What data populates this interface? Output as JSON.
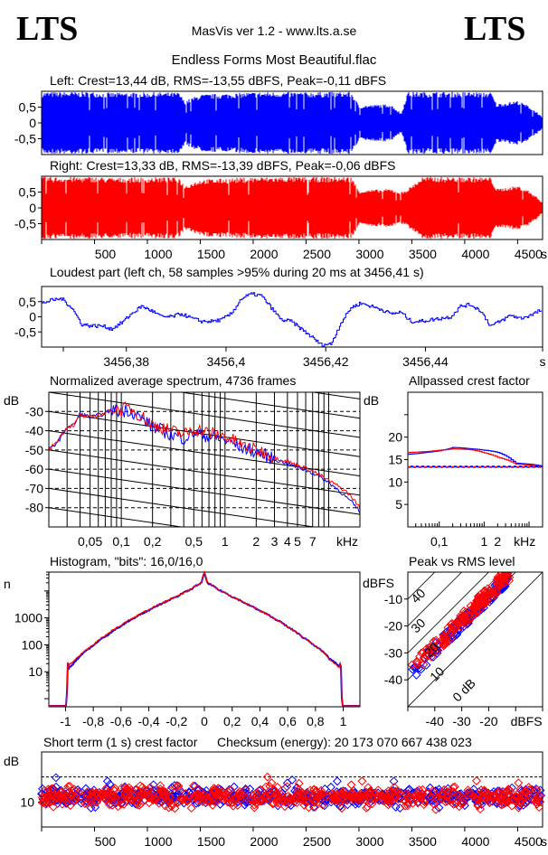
{
  "header": {
    "logo_left": "LTS",
    "logo_right": "LTS",
    "app": "MasVis ver 1.2 - www.lts.a.se",
    "file": "Endless Forms Most Beautiful.flac"
  },
  "colors": {
    "left": "#0000ff",
    "right": "#ff0000",
    "grid": "#000000"
  },
  "chart_data": [
    {
      "id": "left-waveform",
      "type": "area",
      "title": "Left: Crest=13,44 dB, RMS=-13,55 dBFS, Peak=-0,11 dBFS",
      "channel": "left",
      "ylim": [
        -1,
        1
      ],
      "yticks": [
        "0,5",
        "0",
        "-0,5"
      ],
      "ytick_values": [
        0.5,
        0,
        -0.5
      ],
      "xlim": [
        0,
        4736
      ],
      "envelope_x": [
        0,
        300,
        500,
        700,
        800,
        1000,
        1050,
        1300,
        1350,
        1500,
        2000,
        2340,
        2500,
        2700,
        2930,
        3000,
        3300,
        3400,
        3460,
        3600,
        3800,
        4000,
        4250,
        4300,
        4500,
        4600,
        4700,
        4736
      ],
      "envelope_y": [
        0.98,
        0.98,
        0.98,
        0.95,
        0.97,
        0.96,
        0.97,
        0.96,
        0.7,
        0.9,
        0.97,
        0.98,
        0.97,
        0.98,
        0.98,
        0.55,
        0.6,
        0.3,
        0.98,
        0.98,
        0.98,
        0.98,
        0.97,
        0.6,
        0.7,
        0.55,
        0.3,
        0.15
      ]
    },
    {
      "id": "right-waveform",
      "type": "area",
      "title": "Right: Crest=13,33 dB, RMS=-13,39 dBFS, Peak=-0,06 dBFS",
      "channel": "right",
      "ylim": [
        -1,
        1
      ],
      "yticks": [
        "0,5",
        "0",
        "-0,5"
      ],
      "ytick_values": [
        0.5,
        0,
        -0.5
      ],
      "xlim": [
        0,
        4736
      ],
      "xticks": [
        "500",
        "1000",
        "1500",
        "2000",
        "2500",
        "3000",
        "3500",
        "4000",
        "4500"
      ],
      "xtick_values": [
        500,
        1000,
        1500,
        2000,
        2500,
        3000,
        3500,
        4000,
        4500
      ],
      "xunit": "s",
      "envelope_x": [
        0,
        300,
        500,
        700,
        800,
        1000,
        1050,
        1300,
        1350,
        1500,
        2000,
        2340,
        2500,
        2700,
        2930,
        3000,
        3300,
        3400,
        3460,
        3600,
        3800,
        4000,
        4250,
        4300,
        4500,
        4600,
        4700,
        4736
      ],
      "envelope_y": [
        0.98,
        0.98,
        0.98,
        0.95,
        0.97,
        0.96,
        0.97,
        0.96,
        0.7,
        0.9,
        0.97,
        0.98,
        0.97,
        0.98,
        0.98,
        0.55,
        0.6,
        0.5,
        0.6,
        0.98,
        0.98,
        0.98,
        0.97,
        0.6,
        0.7,
        0.55,
        0.3,
        0.15
      ]
    },
    {
      "id": "loudest-part",
      "type": "line",
      "title": "Loudest part (left  ch, 58 samples >95% during 20 ms at 3456,41 s)",
      "ylim": [
        -1,
        1
      ],
      "yticks": [
        "0,5",
        "0",
        "-0,5"
      ],
      "ytick_values": [
        0.5,
        0,
        -0.5
      ],
      "xlim": [
        3456.363,
        3456.4635
      ],
      "xticks": [
        "3456,38",
        "3456,4",
        "3456,42",
        "3456,44",
        "s"
      ],
      "xtick_values": [
        3456.38,
        3456.4,
        3456.42,
        3456.44,
        3456.4635
      ],
      "x": [
        3456.363,
        3456.365,
        3456.367,
        3456.369,
        3456.371,
        3456.373,
        3456.375,
        3456.377,
        3456.379,
        3456.381,
        3456.383,
        3456.385,
        3456.387,
        3456.389,
        3456.391,
        3456.393,
        3456.395,
        3456.397,
        3456.399,
        3456.401,
        3456.403,
        3456.405,
        3456.407,
        3456.409,
        3456.411,
        3456.413,
        3456.415,
        3456.417,
        3456.419,
        3456.421,
        3456.423,
        3456.425,
        3456.427,
        3456.429,
        3456.431,
        3456.433,
        3456.435,
        3456.437,
        3456.439,
        3456.441,
        3456.443,
        3456.445,
        3456.447,
        3456.449,
        3456.451,
        3456.453,
        3456.455,
        3456.457,
        3456.459,
        3456.461,
        3456.4635
      ],
      "y": [
        0.45,
        0.55,
        0.6,
        0.3,
        -0.25,
        -0.3,
        -0.3,
        -0.4,
        -0.2,
        0.1,
        0.35,
        0.2,
        0.0,
        0.0,
        0.1,
        -0.05,
        -0.15,
        -0.15,
        -0.1,
        0.1,
        0.6,
        0.75,
        0.7,
        0.3,
        -0.1,
        -0.15,
        -0.4,
        -0.65,
        -0.92,
        -0.9,
        -0.2,
        0.3,
        0.45,
        0.35,
        0.25,
        0.1,
        0.15,
        -0.15,
        -0.15,
        -0.1,
        -0.05,
        0.0,
        0.35,
        0.4,
        0.2,
        -0.3,
        -0.15,
        0.05,
        -0.05,
        0.05,
        0.25
      ]
    },
    {
      "id": "average-spectrum",
      "type": "line",
      "title": "Normalized average spectrum, 4736 frames",
      "ylabel": "dB",
      "ylim": [
        -90,
        -20
      ],
      "yticks": [
        "-30",
        "-40",
        "-50",
        "-60",
        "-70",
        "-80"
      ],
      "ytick_values": [
        -30,
        -40,
        -50,
        -60,
        -70,
        -80
      ],
      "xscale": "log",
      "xlim": [
        0.02,
        20
      ],
      "xticks": [
        "0,05",
        "0,1",
        "0,2",
        "0,5",
        "1",
        "2",
        "3",
        "4",
        "5",
        "7",
        "kHz"
      ],
      "xtick_values": [
        0.05,
        0.1,
        0.2,
        0.5,
        1,
        2,
        3,
        4,
        5,
        7,
        17
      ],
      "series": [
        {
          "name": "left",
          "x": [
            0.02,
            0.025,
            0.03,
            0.035,
            0.04,
            0.05,
            0.06,
            0.07,
            0.08,
            0.1,
            0.12,
            0.15,
            0.2,
            0.3,
            0.4,
            0.5,
            0.7,
            1,
            1.5,
            2,
            3,
            4,
            5,
            7,
            10,
            15,
            20
          ],
          "y": [
            -50,
            -45,
            -38,
            -37,
            -31,
            -33,
            -32,
            -31,
            -29,
            -30,
            -29,
            -33,
            -38,
            -42,
            -44,
            -41,
            -43,
            -45,
            -49,
            -51,
            -55,
            -57,
            -59,
            -62,
            -67,
            -75,
            -82
          ]
        },
        {
          "name": "right",
          "x": [
            0.02,
            0.025,
            0.03,
            0.035,
            0.04,
            0.05,
            0.06,
            0.07,
            0.08,
            0.1,
            0.12,
            0.15,
            0.2,
            0.3,
            0.4,
            0.5,
            0.7,
            1,
            1.5,
            2,
            3,
            4,
            5,
            7,
            10,
            15,
            20
          ],
          "y": [
            -50,
            -44,
            -38,
            -37,
            -32,
            -33,
            -32,
            -31,
            -29,
            -29,
            -28,
            -32,
            -37,
            -40,
            -42,
            -39,
            -41,
            -43,
            -48,
            -50,
            -54,
            -56,
            -58,
            -61,
            -66,
            -72,
            -80
          ]
        }
      ]
    },
    {
      "id": "allpassed-crest",
      "type": "line",
      "title": "Allpassed crest factor",
      "ylabel": "dB",
      "ylim": [
        0,
        30
      ],
      "yticks": [
        "20",
        "15",
        "10",
        "5"
      ],
      "ytick_values": [
        20,
        15,
        10,
        5
      ],
      "xscale": "log",
      "xlim": [
        0.02,
        20
      ],
      "xticks": [
        "0,1",
        "1",
        "2",
        "kHz"
      ],
      "xtick_values": [
        0.1,
        1,
        2,
        8
      ],
      "series": [
        {
          "name": "left",
          "x": [
            0.02,
            0.05,
            0.1,
            0.2,
            0.5,
            1,
            2,
            5,
            20
          ],
          "y": [
            16.2,
            16.6,
            17.0,
            17.7,
            17.4,
            17.1,
            16.6,
            14.2,
            13.5
          ]
        },
        {
          "name": "right",
          "x": [
            0.02,
            0.05,
            0.1,
            0.2,
            0.5,
            1,
            2,
            5,
            20
          ],
          "y": [
            16.6,
            16.8,
            17.1,
            17.4,
            17.2,
            16.5,
            15.5,
            14.0,
            13.3
          ]
        }
      ],
      "reference": {
        "left": 13.44,
        "right": 13.33
      }
    },
    {
      "id": "histogram",
      "type": "line",
      "title": "Histogram, \"bits\": 16,0/16,0",
      "ylabel": "n",
      "yscale": "log",
      "ylim": [
        0.5,
        50000
      ],
      "yticks": [
        "1000",
        "100",
        "10"
      ],
      "ytick_values": [
        1000,
        100,
        10
      ],
      "xlim": [
        -1.12,
        1.12
      ],
      "xticks": [
        "-1",
        "-0,8",
        "-0,6",
        "-0,4",
        "-0,2",
        "0",
        "0,2",
        "0,4",
        "0,6",
        "0,8",
        "1"
      ],
      "xtick_values": [
        -1,
        -0.8,
        -0.6,
        -0.4,
        -0.2,
        0,
        0.2,
        0.4,
        0.6,
        0.8,
        1
      ],
      "series": [
        {
          "name": "left",
          "x": [
            -1.12,
            -0.99,
            -0.985,
            -0.98,
            -0.97,
            -0.95,
            -0.9,
            -0.8,
            -0.7,
            -0.6,
            -0.5,
            -0.4,
            -0.3,
            -0.2,
            -0.1,
            -0.02,
            0,
            0.02,
            0.1,
            0.2,
            0.3,
            0.4,
            0.5,
            0.6,
            0.7,
            0.8,
            0.9,
            0.97,
            0.98,
            0.985,
            0.99,
            1.12
          ],
          "y": [
            0.5,
            0.5,
            25,
            11,
            15,
            18,
            35,
            90,
            220,
            480,
            1000,
            1900,
            3500,
            6000,
            11000,
            20000,
            45000,
            20000,
            11000,
            6000,
            3300,
            1800,
            950,
            450,
            200,
            85,
            30,
            16,
            20,
            12,
            0.5,
            0.5
          ]
        },
        {
          "name": "right",
          "x": [
            -1.12,
            -0.99,
            -0.985,
            -0.98,
            -0.97,
            -0.95,
            -0.9,
            -0.8,
            -0.7,
            -0.6,
            -0.5,
            -0.4,
            -0.3,
            -0.2,
            -0.1,
            -0.02,
            0,
            0.02,
            0.1,
            0.2,
            0.3,
            0.4,
            0.5,
            0.6,
            0.7,
            0.8,
            0.9,
            0.97,
            0.98,
            0.985,
            0.99,
            1.12
          ],
          "y": [
            0.5,
            0.5,
            26,
            14,
            20,
            22,
            38,
            95,
            240,
            520,
            1050,
            2000,
            3600,
            6100,
            11000,
            20000,
            50000,
            21000,
            11000,
            6000,
            3300,
            1800,
            950,
            450,
            200,
            85,
            28,
            14,
            22,
            14,
            0.5,
            0.5
          ]
        }
      ]
    },
    {
      "id": "peak-vs-rms",
      "type": "scatter",
      "title": "Peak vs RMS level",
      "ylabel": "dBFS",
      "xlabel": "dBFS",
      "xlim": [
        -50,
        0
      ],
      "ylim": [
        -50,
        0
      ],
      "xticks": [
        "-40",
        "-30",
        "-20",
        "dBFS"
      ],
      "xtick_values": [
        -40,
        -30,
        -20,
        -6
      ],
      "yticks": [
        "-10",
        "-20",
        "-30",
        "-40"
      ],
      "ytick_values": [
        -10,
        -20,
        -30,
        -40
      ],
      "crest_lines": [
        "0 dB",
        "10",
        "20",
        "30",
        "40"
      ],
      "crest_line_values": [
        0,
        10,
        20,
        30,
        40
      ],
      "series": [
        {
          "name": "left",
          "rms_range": [
            -49,
            -13
          ],
          "crest_mean": 11,
          "crest_spread": 2.5
        },
        {
          "name": "right",
          "rms_range": [
            -49,
            -12
          ],
          "crest_mean": 12,
          "crest_spread": 3
        }
      ]
    },
    {
      "id": "short-term-crest",
      "type": "scatter",
      "title": "Short term (1 s) crest factor",
      "checksum_label": "Checksum (energy):  20 173 070 667 438 023",
      "ylabel": "dB",
      "ylim": [
        5,
        20
      ],
      "yticks": [
        "10"
      ],
      "ytick_values": [
        10
      ],
      "dashed_reference": 15,
      "xlim": [
        0,
        4736
      ],
      "xticks": [
        "500",
        "1000",
        "1500",
        "2000",
        "2500",
        "3000",
        "3500",
        "4000",
        "4500"
      ],
      "xtick_values": [
        500,
        1000,
        1500,
        2000,
        2500,
        3000,
        3500,
        4000,
        4500
      ],
      "xunit": "s",
      "series": [
        {
          "name": "left",
          "mean": 11.0,
          "spread": 1.3
        },
        {
          "name": "right",
          "mean": 11.0,
          "spread": 1.4
        }
      ]
    }
  ]
}
